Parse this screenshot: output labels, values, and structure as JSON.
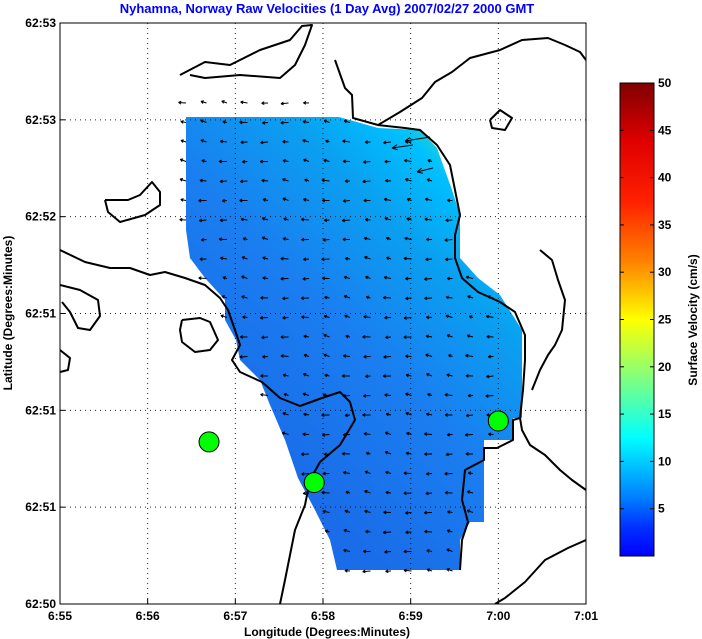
{
  "chart_data": {
    "type": "heatmap",
    "title": "Nyhamna, Norway Raw Velocities (1 Day Avg) 2007/02/27 2000 GMT",
    "xlabel": "Longitude (Degrees:Minutes)",
    "ylabel": "Latitude (Degrees:Minutes)",
    "x_ticks": [
      "6:55",
      "6:56",
      "6:57",
      "6:58",
      "6:59",
      "7:00",
      "7:01"
    ],
    "y_ticks": [
      "62:50",
      "62:51",
      "62:51",
      "62:51",
      "62:52",
      "62:53",
      "62:53"
    ],
    "xlim_minutes": [
      55,
      61
    ],
    "grid": true,
    "colorbar": {
      "label": "Surface Velocity (cm/s)",
      "range": [
        0,
        50
      ],
      "ticks": [
        5,
        10,
        15,
        20,
        25,
        30,
        35,
        40,
        45,
        50
      ]
    },
    "stations": [
      {
        "lon_min": 56.7,
        "lat_frac": 0.279
      },
      {
        "lon_min": 57.9,
        "lat_frac": 0.209
      },
      {
        "lon_min": 60.0,
        "lat_frac": 0.315
      }
    ]
  }
}
